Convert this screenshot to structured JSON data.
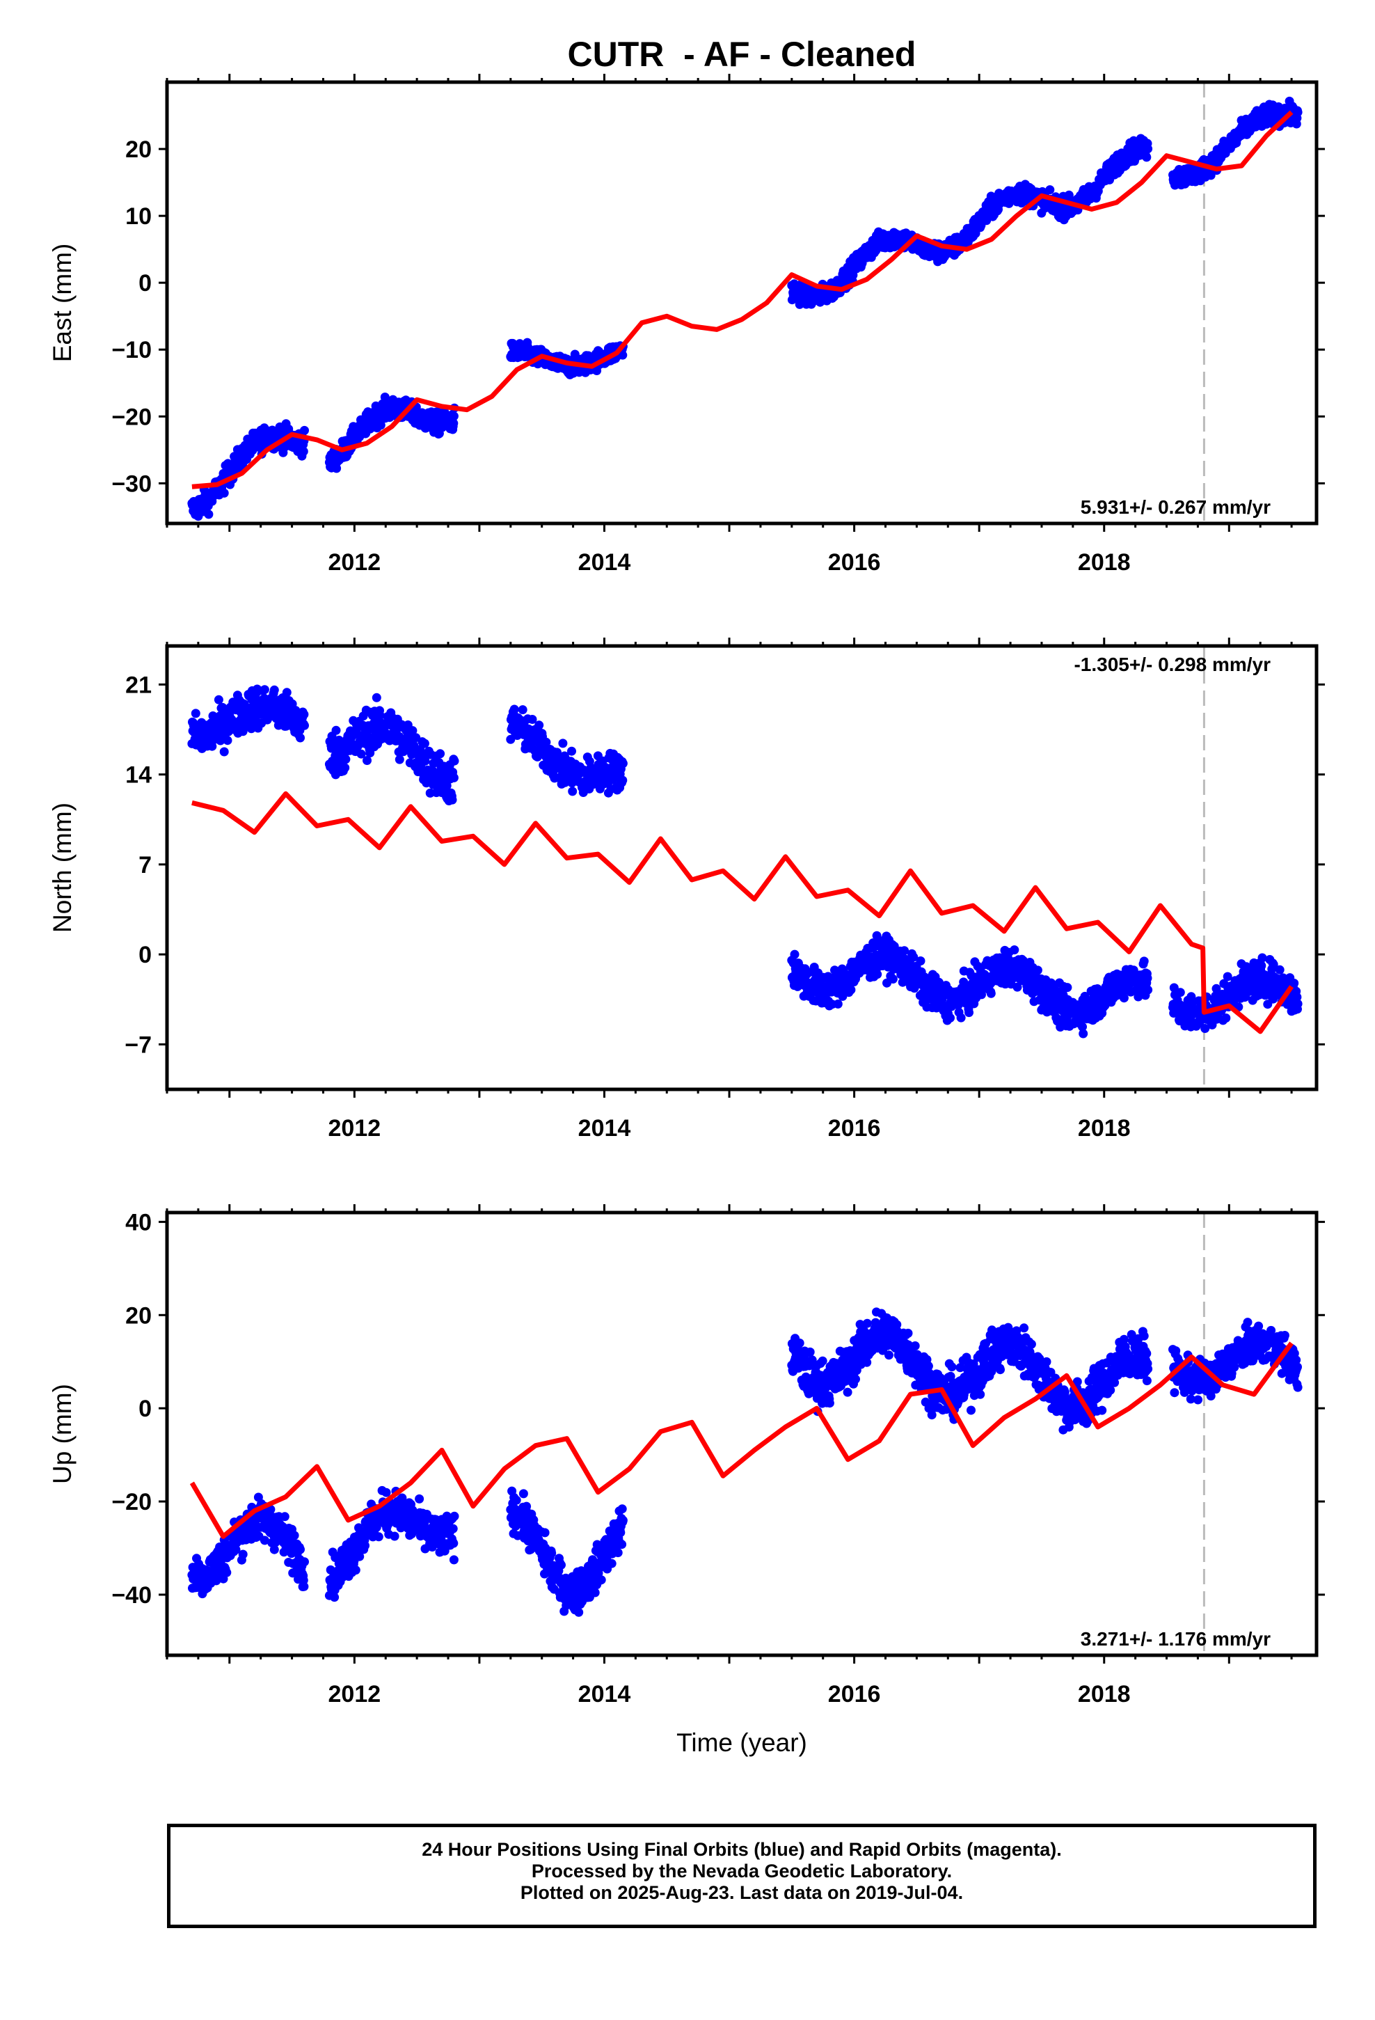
{
  "figure": {
    "title": "CUTR  - AF - Cleaned",
    "xlabel": "Time (year)",
    "footer_lines": [
      "24 Hour Positions Using Final Orbits (blue) and Rapid Orbits (magenta).",
      "Processed by the Nevada Geodetic Laboratory.",
      "Plotted on 2025-Aug-23. Last data on 2019-Jul-04."
    ],
    "colors": {
      "data": "#0000ff",
      "model": "#ff0000",
      "equipment_change_line": "#bbbbbb",
      "frame": "#000000"
    }
  },
  "chart_data": [
    {
      "type": "scatter",
      "panel": "East",
      "ylabel": "East (mm)",
      "rate_label": "5.931+/- 0.267 mm/yr",
      "xlim": [
        2010.5,
        2019.7
      ],
      "ylim": [
        -36,
        30
      ],
      "xticks": [
        2012,
        2014,
        2016,
        2018
      ],
      "yticks": [
        -30,
        -20,
        -10,
        0,
        10,
        20
      ],
      "equipment_change": 2018.8,
      "model": {
        "name": "model fit",
        "x": [
          2010.7,
          2010.9,
          2011.1,
          2011.3,
          2011.5,
          2011.7,
          2011.9,
          2012.1,
          2012.3,
          2012.5,
          2012.7,
          2012.9,
          2013.1,
          2013.3,
          2013.5,
          2013.7,
          2013.9,
          2014.1,
          2014.3,
          2014.5,
          2014.7,
          2014.9,
          2015.1,
          2015.3,
          2015.5,
          2015.7,
          2015.9,
          2016.1,
          2016.3,
          2016.5,
          2016.7,
          2016.9,
          2017.1,
          2017.3,
          2017.5,
          2017.7,
          2017.9,
          2018.1,
          2018.3,
          2018.5,
          2018.7,
          2018.9,
          2019.1,
          2019.3,
          2019.5
        ],
        "y": [
          -30.5,
          -30.2,
          -28.5,
          -25,
          -22.7,
          -23.5,
          -25,
          -24,
          -21.5,
          -17.5,
          -18.5,
          -19,
          -17,
          -13,
          -11,
          -12,
          -12.5,
          -10.5,
          -6,
          -5,
          -6.5,
          -7,
          -5.5,
          -3,
          1.2,
          -0.5,
          -1,
          0.5,
          3.5,
          7,
          5.5,
          5,
          6.5,
          10,
          13,
          12,
          11,
          12,
          15,
          19,
          18,
          17,
          17.5,
          22,
          25.5
        ]
      },
      "segments": [
        {
          "x_start": 2010.7,
          "x_end": 2011.6,
          "y_start": -31.5,
          "y_end": -22.5,
          "amplitude": 2.5,
          "spread": 1.8
        },
        {
          "x_start": 2011.8,
          "x_end": 2012.8,
          "y_start": -24.5,
          "y_end": -18,
          "amplitude": 2.5,
          "spread": 1.6
        },
        {
          "x_start": 2013.25,
          "x_end": 2014.15,
          "y_start": -11.5,
          "y_end": -11,
          "amplitude": 1.2,
          "spread": 1.4
        },
        {
          "x_start": 2015.5,
          "x_end": 2018.35,
          "y_start": -1,
          "y_end": 18,
          "amplitude": 2.5,
          "spread": 1.5
        },
        {
          "x_start": 2018.55,
          "x_end": 2019.55,
          "y_start": 16.5,
          "y_end": 25.5,
          "amplitude": 1.8,
          "spread": 1.5
        }
      ]
    },
    {
      "type": "scatter",
      "panel": "North",
      "ylabel": "North (mm)",
      "rate_label": "-1.305+/- 0.298 mm/yr",
      "xlim": [
        2010.5,
        2019.7
      ],
      "ylim": [
        -10.5,
        24
      ],
      "xticks": [
        2012,
        2014,
        2016,
        2018
      ],
      "yticks": [
        -7,
        0,
        7,
        14,
        21
      ],
      "equipment_change": 2018.8,
      "model": {
        "name": "model fit",
        "x": [
          2010.7,
          2010.95,
          2011.2,
          2011.45,
          2011.7,
          2011.95,
          2012.2,
          2012.45,
          2012.7,
          2012.95,
          2013.2,
          2013.45,
          2013.7,
          2013.95,
          2014.2,
          2014.45,
          2014.7,
          2014.95,
          2015.2,
          2015.45,
          2015.7,
          2015.95,
          2016.2,
          2016.45,
          2016.7,
          2016.95,
          2017.2,
          2017.45,
          2017.7,
          2017.95,
          2018.2,
          2018.45,
          2018.7,
          2018.79,
          2018.8,
          2019.0,
          2019.25,
          2019.5
        ],
        "y": [
          11.8,
          11.2,
          9.5,
          12.5,
          10.0,
          10.5,
          8.3,
          11.5,
          8.8,
          9.2,
          7.0,
          10.2,
          7.5,
          7.8,
          5.6,
          9.0,
          5.8,
          6.5,
          4.3,
          7.6,
          4.5,
          5.0,
          3.0,
          6.5,
          3.2,
          3.8,
          1.8,
          5.2,
          2.0,
          2.5,
          0.2,
          3.8,
          0.8,
          0.5,
          -4.5,
          -4.0,
          -6.0,
          -2.5
        ]
      },
      "segments": [
        {
          "x_start": 2010.7,
          "x_end": 2011.6,
          "y_start": 18,
          "y_end": 18.5,
          "amplitude": 1.0,
          "spread": 1.6
        },
        {
          "x_start": 2011.8,
          "x_end": 2012.8,
          "y_start": 17,
          "y_end": 15,
          "amplitude": 1.5,
          "spread": 1.8
        },
        {
          "x_start": 2013.25,
          "x_end": 2014.15,
          "y_start": 17,
          "y_end": 13.5,
          "amplitude": 1.0,
          "spread": 1.5
        },
        {
          "x_start": 2015.5,
          "x_end": 2018.35,
          "y_start": -1,
          "y_end": -3.5,
          "amplitude": 1.5,
          "spread": 1.4
        },
        {
          "x_start": 2018.55,
          "x_end": 2019.55,
          "y_start": -3.5,
          "y_end": -3,
          "amplitude": 1.2,
          "spread": 1.5
        }
      ]
    },
    {
      "type": "scatter",
      "panel": "Up",
      "ylabel": "Up (mm)",
      "rate_label": "3.271+/- 1.176 mm/yr",
      "xlim": [
        2010.5,
        2019.7
      ],
      "ylim": [
        -53,
        42
      ],
      "xticks": [
        2012,
        2014,
        2016,
        2018
      ],
      "yticks": [
        -40,
        -20,
        0,
        20,
        40
      ],
      "equipment_change": 2018.8,
      "model": {
        "name": "model fit",
        "x": [
          2010.7,
          2010.95,
          2011.2,
          2011.45,
          2011.7,
          2011.95,
          2012.2,
          2012.45,
          2012.7,
          2012.95,
          2013.2,
          2013.45,
          2013.7,
          2013.95,
          2014.2,
          2014.45,
          2014.7,
          2014.95,
          2015.2,
          2015.45,
          2015.7,
          2015.95,
          2016.2,
          2016.45,
          2016.7,
          2016.95,
          2017.2,
          2017.45,
          2017.7,
          2017.95,
          2018.2,
          2018.45,
          2018.7,
          2018.95,
          2019.2,
          2019.5
        ],
        "y": [
          -16,
          -27.5,
          -22,
          -19,
          -12.5,
          -24,
          -21,
          -16,
          -9,
          -21,
          -13,
          -8,
          -6.5,
          -18,
          -13,
          -5,
          -3,
          -14.5,
          -9,
          -4,
          0,
          -11,
          -7,
          3,
          4,
          -8,
          -2,
          2,
          7,
          -4,
          0,
          5,
          11,
          5,
          3,
          14
        ]
      },
      "segments": [
        {
          "x_start": 2010.7,
          "x_end": 2011.6,
          "y_start": -30,
          "y_end": -30,
          "amplitude": 6,
          "spread": 4.5
        },
        {
          "x_start": 2011.8,
          "x_end": 2012.8,
          "y_start": -32,
          "y_end": -22,
          "amplitude": 5,
          "spread": 4.5
        },
        {
          "x_start": 2013.25,
          "x_end": 2014.15,
          "y_start": -30,
          "y_end": -32,
          "amplitude": 8,
          "spread": 4.5
        },
        {
          "x_start": 2015.5,
          "x_end": 2018.35,
          "y_start": 12,
          "y_end": 5,
          "amplitude": 6,
          "spread": 5
        },
        {
          "x_start": 2018.55,
          "x_end": 2019.55,
          "y_start": 10,
          "y_end": 10,
          "amplitude": 4,
          "spread": 4
        }
      ]
    }
  ]
}
